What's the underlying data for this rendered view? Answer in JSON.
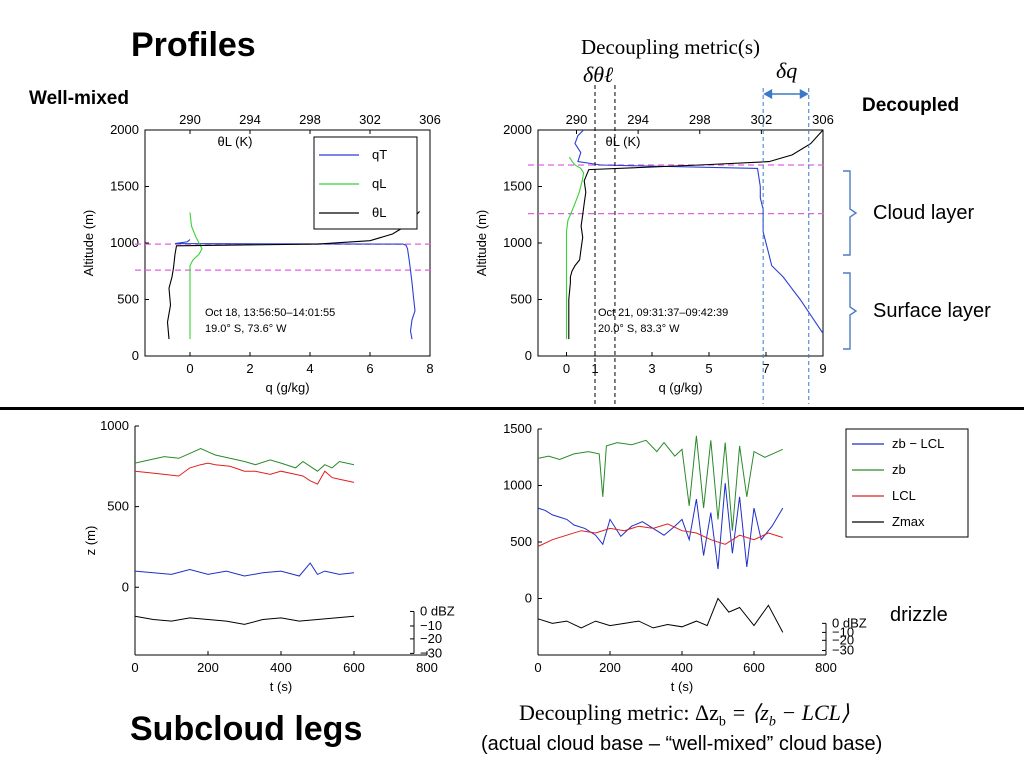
{
  "page": {
    "title_profiles": "Profiles",
    "title_subcloud": "Subcloud legs",
    "label_well_mixed": "Well-mixed",
    "label_decoupled": "Decoupled",
    "decoupling_metrics_title": "Decoupling metric(s)",
    "delta_theta_label": "δθℓ",
    "delta_q_label": "δq",
    "cloud_layer_label": "Cloud layer",
    "surface_layer_label": "Surface layer",
    "drizzle_label": "drizzle",
    "metric_formula": "Decoupling metric:  Δz_b = ⟨z_b − LCL⟩",
    "metric_formula_left": "Decoupling metric:  ",
    "metric_formula_right": "Δz",
    "metric_formula_sub": "b",
    "metric_formula_eq": " = ⟨z",
    "metric_formula_sub2": "b",
    "metric_formula_tail": " − LCL⟩",
    "metric_caption": "(actual cloud base – “well-mixed” cloud base)"
  },
  "colors": {
    "qT": "#2b3fd6",
    "qL": "#39d139",
    "thetaL": "#000000",
    "magenta": "#e060e0",
    "blue_guide": "#3a7ac8",
    "zb_lcl": "#1f2fc8",
    "zb": "#2a8a2a",
    "lcl": "#e02020",
    "zmax": "#000000",
    "bracket": "#4a7ec0"
  },
  "chart_data": [
    {
      "id": "profile-well-mixed",
      "type": "line",
      "xlabel": "q (g/kg)",
      "ylabel": "Altitude (m)",
      "top_axis_label": "θL (K)",
      "x_ticks": [
        "0",
        "2",
        "4",
        "6",
        "8"
      ],
      "x_tick_values": [
        0,
        2,
        4,
        6,
        8
      ],
      "top_ticks": [
        "290",
        "294",
        "298",
        "302",
        "306"
      ],
      "y_ticks": [
        "0",
        "500",
        "1000",
        "1500",
        "2000"
      ],
      "y_tick_values": [
        0,
        500,
        1000,
        1500,
        2000
      ],
      "xlim": [
        -1.5,
        8
      ],
      "ylim": [
        0,
        2000
      ],
      "top_lim": [
        287,
        306
      ],
      "legend": [
        "qT",
        "qL",
        "θL"
      ],
      "legend_placement": "top-right",
      "annotation_line1": "Oct 18, 13:56:50–14:01:55",
      "annotation_line2": "19.0° S, 73.6° W",
      "dashed_levels": [
        990,
        760
      ],
      "series": [
        {
          "name": "qT",
          "key": "qT",
          "x": [
            7.4,
            7.35,
            7.4,
            7.5,
            7.45,
            7.4,
            7.35,
            7.3,
            7.25,
            7.2,
            7.1,
            -0.5,
            -0.1,
            0.0
          ],
          "y": [
            150,
            220,
            320,
            400,
            520,
            650,
            760,
            860,
            950,
            980,
            990,
            995,
            1010,
            1030
          ]
        },
        {
          "name": "qL",
          "key": "qL",
          "x": [
            0,
            0,
            0,
            0,
            0,
            0,
            0,
            0.1,
            0.3,
            0.4,
            0.3,
            0.2,
            0.05,
            0
          ],
          "y": [
            150,
            300,
            500,
            700,
            750,
            760,
            800,
            850,
            900,
            950,
            1000,
            1050,
            1150,
            1270
          ]
        },
        {
          "name": "θL",
          "key": "thetaL",
          "x": [
            288.6,
            288.5,
            288.7,
            288.6,
            288.8,
            288.9,
            289.0,
            289.1,
            298.5,
            302.0,
            303.5,
            304.5,
            305.3
          ],
          "y": [
            150,
            300,
            450,
            600,
            700,
            780,
            900,
            975,
            990,
            1020,
            1080,
            1160,
            1280
          ]
        }
      ]
    },
    {
      "id": "profile-decoupled",
      "type": "line",
      "xlabel": "q (g/kg)",
      "ylabel": "Altitude (m)",
      "top_axis_label": "θL (K)",
      "x_ticks": [
        "0",
        "1",
        "3",
        "5",
        "7",
        "9"
      ],
      "x_tick_values": [
        0,
        1,
        3,
        5,
        7,
        9
      ],
      "top_ticks": [
        "290",
        "294",
        "298",
        "302",
        "306"
      ],
      "y_ticks": [
        "0",
        "500",
        "1000",
        "1500",
        "2000"
      ],
      "y_tick_values": [
        0,
        500,
        1000,
        1500,
        2000
      ],
      "xlim": [
        -1,
        9
      ],
      "ylim": [
        0,
        2000
      ],
      "top_lim": [
        287.5,
        306
      ],
      "annotation_line1": "Oct 21, 09:31:37–09:42:39",
      "annotation_line2": "20.0° S, 83.3° W",
      "dashed_levels": [
        1690,
        1260
      ],
      "guide_q": [
        1.0,
        1.7,
        6.9,
        8.5
      ],
      "series": [
        {
          "name": "qT",
          "key": "qT",
          "x": [
            9.0,
            8.6,
            8.2,
            7.9,
            7.6,
            7.2,
            7.1,
            7.0,
            6.9,
            6.9,
            6.9,
            6.8,
            6.8,
            6.7,
            1.2,
            0.4,
            0.5,
            0.3,
            0.4,
            0.6
          ],
          "y": [
            200,
            350,
            500,
            600,
            700,
            800,
            900,
            1000,
            1100,
            1200,
            1300,
            1400,
            1500,
            1660,
            1690,
            1720,
            1800,
            1880,
            1950,
            2000
          ]
        },
        {
          "name": "qL",
          "key": "qL",
          "x": [
            0,
            0,
            0,
            0,
            0,
            0,
            0.05,
            0.15,
            0.3,
            0.45,
            0.55,
            0.6,
            0.5,
            0.3,
            0.2,
            0.1
          ],
          "y": [
            150,
            400,
            700,
            900,
            1000,
            1100,
            1200,
            1260,
            1350,
            1450,
            1550,
            1620,
            1660,
            1690,
            1720,
            1760
          ]
        },
        {
          "name": "θL",
          "key": "thetaL",
          "x": [
            289.5,
            289.5,
            289.5,
            289.6,
            289.6,
            289.7,
            289.9,
            290.2,
            290.3,
            290.4,
            290.3,
            290.4,
            290.5,
            290.6,
            290.5,
            290.8,
            298.0,
            302.5,
            304.0,
            305.2,
            306.0
          ],
          "y": [
            150,
            300,
            500,
            650,
            700,
            750,
            800,
            850,
            950,
            1050,
            1150,
            1250,
            1350,
            1450,
            1550,
            1650,
            1690,
            1720,
            1780,
            1880,
            2000
          ]
        }
      ]
    },
    {
      "id": "legs-well-mixed",
      "type": "line",
      "xlabel": "t (s)",
      "ylabel": "z (m)",
      "x_ticks": [
        "0",
        "200",
        "400",
        "600",
        "800"
      ],
      "x_tick_values": [
        0,
        200,
        400,
        600,
        800
      ],
      "y_ticks": [
        "0",
        "500",
        "1000"
      ],
      "y_tick_values": [
        0,
        500,
        1000
      ],
      "xlim": [
        0,
        800
      ],
      "ylim": [
        -420,
        1000
      ],
      "dbz_ticks": [
        "0 dBZ",
        "−10",
        "−20",
        "−30"
      ],
      "dbz_positions_z": [
        -150,
        -240,
        -320,
        -410
      ],
      "series": [
        {
          "name": "zb",
          "key": "zb",
          "x": [
            0,
            40,
            80,
            120,
            150,
            180,
            200,
            220,
            260,
            300,
            330,
            370,
            400,
            440,
            460,
            500,
            520,
            540,
            560,
            600
          ],
          "y": [
            770,
            790,
            810,
            800,
            830,
            860,
            840,
            820,
            800,
            780,
            760,
            790,
            770,
            740,
            780,
            720,
            760,
            740,
            780,
            760
          ]
        },
        {
          "name": "LCL",
          "key": "lcl",
          "x": [
            0,
            40,
            80,
            120,
            150,
            180,
            200,
            220,
            260,
            300,
            330,
            370,
            400,
            440,
            460,
            480,
            500,
            520,
            540,
            560,
            600
          ],
          "y": [
            720,
            710,
            700,
            690,
            740,
            760,
            770,
            760,
            750,
            720,
            720,
            700,
            720,
            700,
            690,
            660,
            640,
            720,
            680,
            670,
            650
          ]
        },
        {
          "name": "zb − LCL",
          "key": "zb_lcl",
          "x": [
            0,
            50,
            100,
            150,
            200,
            250,
            300,
            350,
            400,
            450,
            480,
            500,
            520,
            560,
            600
          ],
          "y": [
            100,
            90,
            80,
            110,
            80,
            100,
            70,
            90,
            100,
            70,
            150,
            80,
            100,
            80,
            90
          ]
        },
        {
          "name": "Zmax",
          "key": "zmax",
          "x": [
            0,
            50,
            100,
            150,
            200,
            250,
            300,
            350,
            400,
            450,
            500,
            550,
            600
          ],
          "y": [
            -180,
            -200,
            -210,
            -190,
            -200,
            -210,
            -230,
            -200,
            -190,
            -210,
            -200,
            -190,
            -180
          ]
        }
      ]
    },
    {
      "id": "legs-decoupled",
      "type": "line",
      "xlabel": "t (s)",
      "ylabel": "",
      "x_ticks": [
        "0",
        "200",
        "400",
        "600",
        "800"
      ],
      "x_tick_values": [
        0,
        200,
        400,
        600,
        800
      ],
      "y_ticks": [
        "0",
        "500",
        "1000",
        "1500"
      ],
      "y_tick_values": [
        0,
        500,
        1000,
        1500
      ],
      "xlim": [
        0,
        800
      ],
      "ylim": [
        -500,
        1500
      ],
      "dbz_ticks": [
        "0 dBZ",
        "−10",
        "−20",
        "−30"
      ],
      "dbz_positions_z": [
        -220,
        -300,
        -370,
        -460
      ],
      "legend": [
        "zb − LCL",
        "zb",
        "LCL",
        "Zmax"
      ],
      "legend_placement": "top-right",
      "series": [
        {
          "name": "zb − LCL",
          "key": "zb_lcl",
          "x": [
            0,
            20,
            40,
            60,
            80,
            100,
            130,
            160,
            180,
            200,
            230,
            260,
            290,
            320,
            350,
            380,
            400,
            420,
            440,
            460,
            480,
            500,
            520,
            540,
            560,
            580,
            600,
            620,
            650,
            680
          ],
          "y": [
            800,
            780,
            740,
            720,
            700,
            650,
            620,
            560,
            480,
            700,
            550,
            640,
            680,
            620,
            560,
            640,
            700,
            520,
            880,
            380,
            760,
            260,
            1020,
            400,
            900,
            280,
            800,
            520,
            640,
            800
          ]
        },
        {
          "name": "zb",
          "key": "zb",
          "x": [
            0,
            30,
            60,
            100,
            140,
            170,
            180,
            190,
            220,
            260,
            300,
            330,
            350,
            380,
            400,
            420,
            440,
            460,
            480,
            500,
            520,
            540,
            560,
            580,
            600,
            630,
            680
          ],
          "y": [
            1240,
            1260,
            1230,
            1280,
            1300,
            1280,
            900,
            1350,
            1380,
            1360,
            1400,
            1300,
            1380,
            1260,
            1320,
            820,
            1440,
            800,
            1400,
            700,
            1380,
            600,
            1350,
            900,
            1300,
            1250,
            1320
          ]
        },
        {
          "name": "LCL",
          "key": "lcl",
          "x": [
            0,
            40,
            80,
            120,
            160,
            200,
            240,
            280,
            320,
            360,
            400,
            440,
            480,
            520,
            560,
            600,
            640,
            680
          ],
          "y": [
            460,
            520,
            560,
            600,
            580,
            620,
            600,
            640,
            620,
            660,
            600,
            580,
            520,
            480,
            560,
            520,
            580,
            540
          ]
        },
        {
          "name": "Zmax",
          "key": "zmax",
          "x": [
            0,
            40,
            80,
            120,
            160,
            200,
            240,
            280,
            320,
            360,
            400,
            440,
            470,
            500,
            530,
            560,
            600,
            640,
            680
          ],
          "y": [
            -180,
            -220,
            -200,
            -260,
            -200,
            -240,
            -220,
            -200,
            -260,
            -230,
            -250,
            -200,
            -240,
            0,
            -120,
            -80,
            -240,
            -60,
            -300
          ]
        }
      ]
    }
  ]
}
